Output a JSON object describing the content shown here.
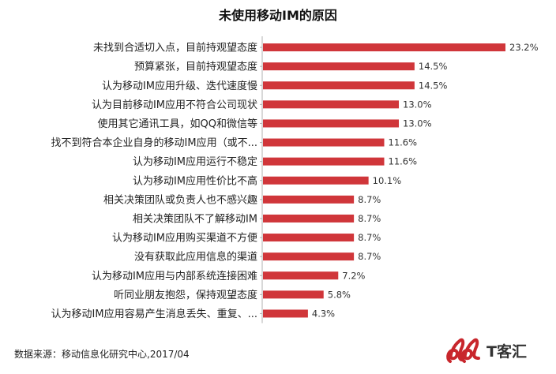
{
  "chart_data": {
    "type": "bar",
    "orientation": "horizontal",
    "title": "未使用移动IM的原因",
    "categories": [
      "未找到合适切入点，目前持观望态度",
      "预算紧张，目前持观望态度",
      "认为移动IM应用升级、迭代速度慢",
      "认为目前移动IM应用不符合公司现状",
      "使用其它通讯工具，如QQ和微信等",
      "找不到符合本企业自身的移动IM应用（或不...",
      "认为移动IM应用运行不稳定",
      "认为移动IM应用性价比不高",
      "相关决策团队或负责人也不感兴趣",
      "相关决策团队不了解移动IM",
      "认为移动IM应用购买渠道不方便",
      "没有获取此应用信息的渠道",
      "认为移动IM应用与内部系统连接困难",
      "听同业朋友抱怨，保持观望态度",
      "认为移动IM应用容易产生消息丢失、重复、..."
    ],
    "values": [
      23.2,
      14.5,
      14.5,
      13.0,
      13.0,
      11.6,
      11.6,
      10.1,
      8.7,
      8.7,
      8.7,
      8.7,
      7.2,
      5.8,
      4.3
    ],
    "value_labels": [
      "23.2%",
      "14.5%",
      "14.5%",
      "13.0%",
      "13.0%",
      "11.6%",
      "11.6%",
      "10.1%",
      "8.7%",
      "8.7%",
      "8.7%",
      "8.7%",
      "7.2%",
      "5.8%",
      "4.3%"
    ],
    "xlim": [
      0,
      23.2
    ],
    "grid": false,
    "legend": "none",
    "bar_color": "#d0363a"
  },
  "footer": {
    "source": "数据来源：移动信息化研究中心,2017/04"
  },
  "logo": {
    "text": "T客汇"
  }
}
